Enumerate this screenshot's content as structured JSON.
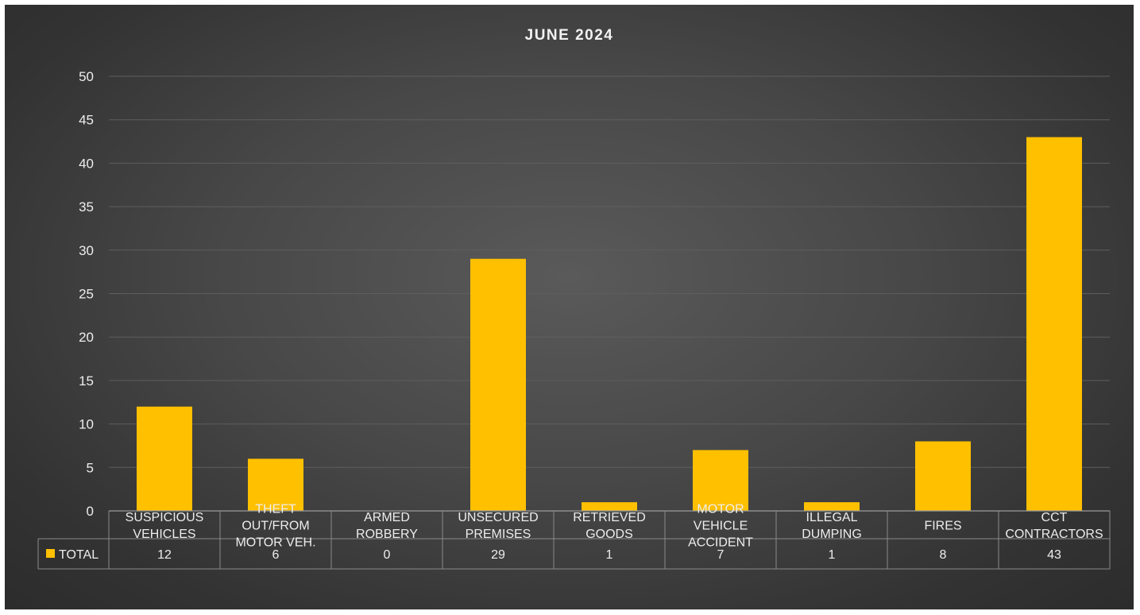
{
  "chart_data": {
    "type": "bar",
    "title": "JUNE 2024",
    "categories": [
      [
        "SUSPICIOUS",
        "VEHICLES"
      ],
      [
        "THEFT",
        "OUT/FROM",
        "MOTOR VEH."
      ],
      [
        "ARMED",
        "ROBBERY"
      ],
      [
        "UNSECURED",
        "PREMISES"
      ],
      [
        "RETRIEVED",
        "GOODS"
      ],
      [
        "MOTOR",
        "VEHICLE",
        "ACCIDENT"
      ],
      [
        "ILLEGAL",
        "DUMPING"
      ],
      [
        "FIRES"
      ],
      [
        "CCT",
        "CONTRACTORS"
      ]
    ],
    "series": [
      {
        "name": "TOTAL",
        "values": [
          12,
          6,
          0,
          29,
          1,
          7,
          1,
          8,
          43
        ],
        "color": "#ffc000"
      }
    ],
    "ylim": [
      0,
      50
    ],
    "yticks": [
      0,
      5,
      10,
      15,
      20,
      25,
      30,
      35,
      40,
      45,
      50
    ],
    "grid": true,
    "data_table": true,
    "legend": "data-table"
  }
}
